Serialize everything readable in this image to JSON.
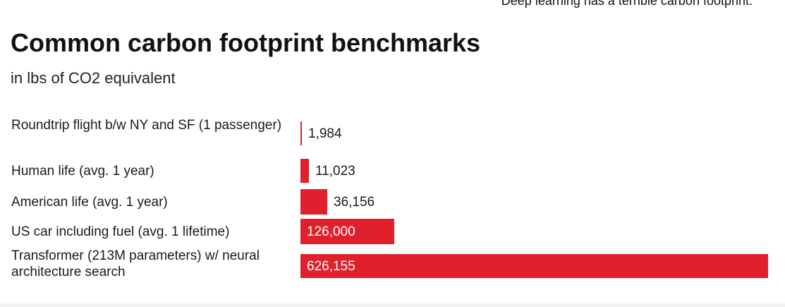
{
  "header": {
    "caption": "Deep learning has a terrible carbon footprint.",
    "title": "Common carbon footprint benchmarks",
    "subtitle": "in lbs of CO2 equivalent"
  },
  "colors": {
    "bar": "#e0202c",
    "text": "#111111",
    "background": "#ffffff"
  },
  "chart_data": {
    "type": "bar",
    "orientation": "horizontal",
    "title": "Common carbon footprint benchmarks",
    "subtitle": "in lbs of CO2 equivalent",
    "categories": [
      "Roundtrip flight b/w NY and SF (1 passenger)",
      "Human life (avg. 1 year)",
      "American life (avg. 1 year)",
      "US car including fuel (avg. 1 lifetime)",
      "Transformer (213M parameters) w/ neural architecture search"
    ],
    "values": [
      1984,
      11023,
      36156,
      126000,
      626155
    ],
    "value_labels": [
      "1,984",
      "11,023",
      "36,156",
      "126,000",
      "626,155"
    ],
    "grid": false,
    "legend": "none"
  }
}
